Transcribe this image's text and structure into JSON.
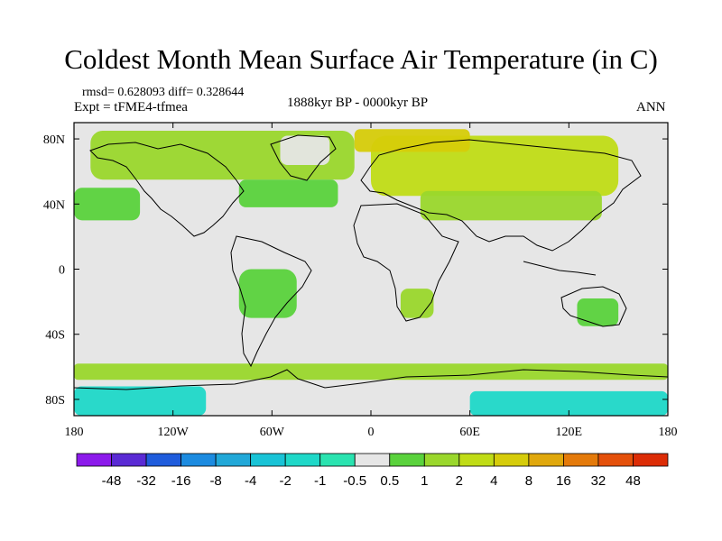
{
  "header": {
    "title": "Coldest Month Mean Surface Air Temperature (in C)",
    "stats": "rmsd= 0.628093 diff= 0.328644",
    "experiment": "Expt = tFME4-tfmea",
    "period": "1888kyr BP - 0000kyr BP",
    "season": "ANN"
  },
  "chart_data": {
    "type": "heatmap",
    "title": "Coldest Month Mean Surface Air Temperature (in C)",
    "subtitle": "1888kyr BP - 0000kyr BP",
    "projection": "cylindrical equidistant",
    "x_range": [
      -180,
      180
    ],
    "y_range": [
      -90,
      90
    ],
    "x_ticks": [
      {
        "value": -180,
        "label": "180"
      },
      {
        "value": -120,
        "label": "120W"
      },
      {
        "value": -60,
        "label": "60W"
      },
      {
        "value": 0,
        "label": "0"
      },
      {
        "value": 60,
        "label": "60E"
      },
      {
        "value": 120,
        "label": "120E"
      },
      {
        "value": 180,
        "label": "180"
      }
    ],
    "y_ticks": [
      {
        "value": 80,
        "label": "80N"
      },
      {
        "value": 40,
        "label": "40N"
      },
      {
        "value": 0,
        "label": "0"
      },
      {
        "value": -40,
        "label": "40S"
      },
      {
        "value": -80,
        "label": "80S"
      }
    ],
    "colorbar": {
      "levels": [
        "-48",
        "-32",
        "-16",
        "-8",
        "-4",
        "-2",
        "-1",
        "-0.5",
        "0.5",
        "1",
        "2",
        "4",
        "8",
        "16",
        "32",
        "48"
      ],
      "colors": [
        "#8c1aeb",
        "#5a2ad4",
        "#1f5cdc",
        "#1c8be0",
        "#21a8d8",
        "#19c3d6",
        "#1fd8c8",
        "#2ae3b0",
        "#e6e6e6",
        "#5ad23c",
        "#9ad72c",
        "#c0dc16",
        "#d6cc0a",
        "#e0a80c",
        "#e47a0a",
        "#e4500a",
        "#dc2c06"
      ]
    },
    "regions": [
      {
        "name": "arctic-north-america",
        "lon": [
          -170,
          -10
        ],
        "lat": [
          55,
          85
        ],
        "category": "1 to 2",
        "color": "#9ad72c"
      },
      {
        "name": "eurasia-north",
        "lon": [
          0,
          150
        ],
        "lat": [
          45,
          82
        ],
        "category": "2 to 4",
        "color": "#c0dc16"
      },
      {
        "name": "eurasia-central",
        "lon": [
          30,
          140
        ],
        "lat": [
          30,
          48
        ],
        "category": "1 to 2",
        "color": "#9ad72c"
      },
      {
        "name": "siberia-warm-core",
        "lon": [
          -10,
          60
        ],
        "lat": [
          72,
          86
        ],
        "category": "4 to 8",
        "color": "#d6cc0a"
      },
      {
        "name": "north-atlantic-warm",
        "lon": [
          -80,
          -20
        ],
        "lat": [
          38,
          55
        ],
        "category": "0.5 to 1",
        "color": "#5ad23c"
      },
      {
        "name": "north-pacific",
        "lon": [
          -180,
          -140
        ],
        "lat": [
          30,
          50
        ],
        "category": "0.5 to 1",
        "color": "#5ad23c"
      },
      {
        "name": "greenland-cool",
        "lon": [
          -55,
          -25
        ],
        "lat": [
          64,
          82
        ],
        "category": "-0.5 to 0.5",
        "color": "#e6e6e6"
      },
      {
        "name": "southern-africa",
        "lon": [
          18,
          38
        ],
        "lat": [
          -30,
          -12
        ],
        "category": "1 to 2",
        "color": "#9ad72c"
      },
      {
        "name": "australia",
        "lon": [
          125,
          150
        ],
        "lat": [
          -35,
          -18
        ],
        "category": "0.5 to 1",
        "color": "#5ad23c"
      },
      {
        "name": "south-america",
        "lon": [
          -80,
          -45
        ],
        "lat": [
          -30,
          0
        ],
        "category": "0.5 to 1",
        "color": "#5ad23c"
      },
      {
        "name": "southern-ocean-ring",
        "lon": [
          -180,
          180
        ],
        "lat": [
          -68,
          -58
        ],
        "category": "0.5 to 2",
        "color": "#9ad72c"
      },
      {
        "name": "antarctica-west",
        "lon": [
          -180,
          -100
        ],
        "lat": [
          -90,
          -72
        ],
        "category": "-2 to -1",
        "color": "#1fd8c8"
      },
      {
        "name": "antarctica-east",
        "lon": [
          60,
          180
        ],
        "lat": [
          -90,
          -75
        ],
        "category": "-2 to -1",
        "color": "#1fd8c8"
      },
      {
        "name": "weddell-sea",
        "lon": [
          -60,
          -20
        ],
        "lat": [
          -80,
          -70
        ],
        "category": "-0.5 to 0.5",
        "color": "#e6e6e6"
      }
    ]
  }
}
